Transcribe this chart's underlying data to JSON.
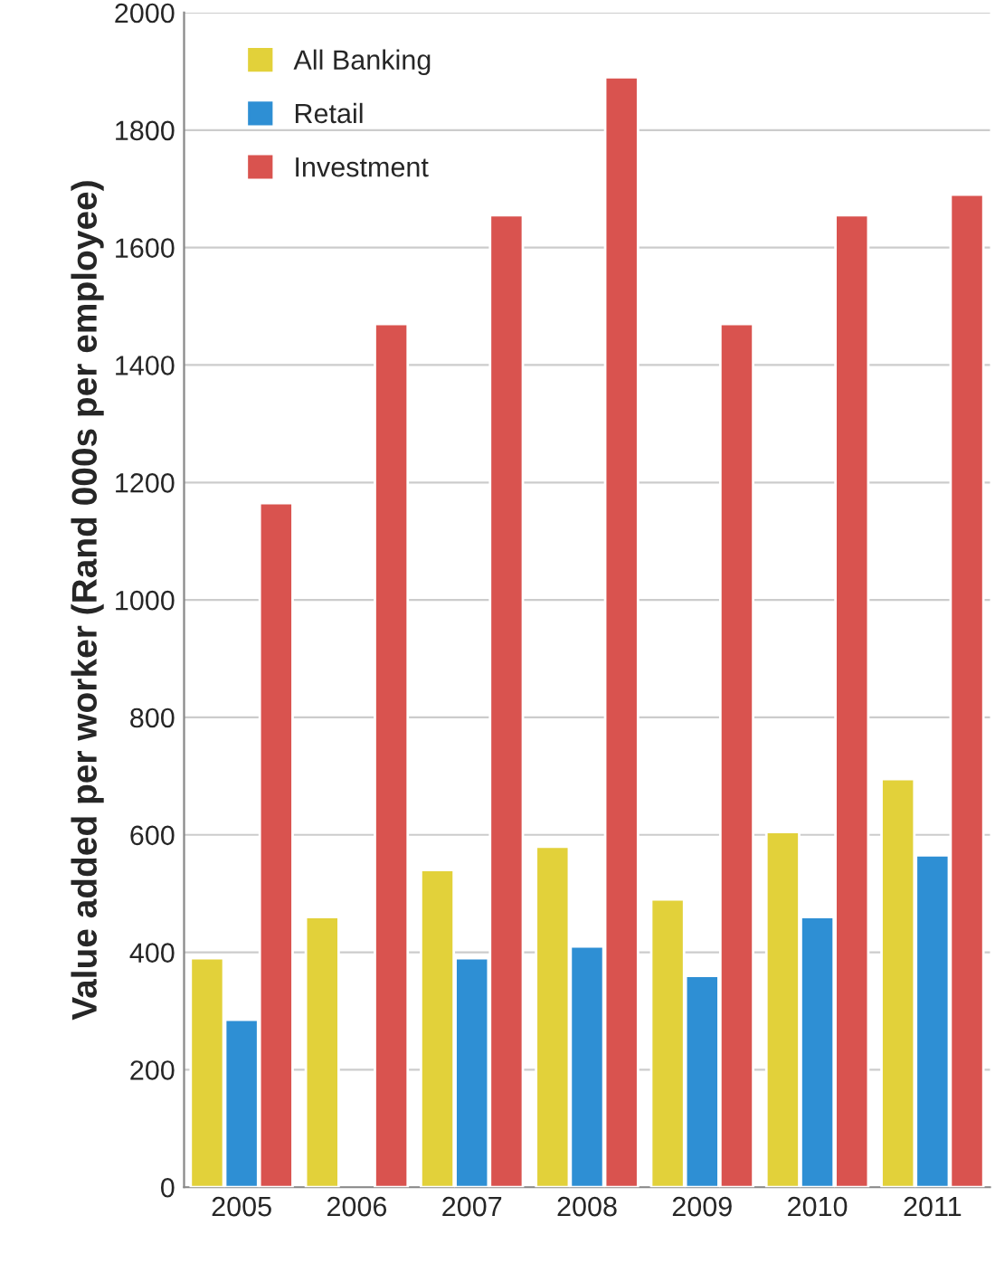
{
  "chart_data": {
    "type": "bar",
    "ylabel": "Value added per worker (Rand 000s per employee)",
    "categories": [
      "2005",
      "2006",
      "2007",
      "2008",
      "2009",
      "2010",
      "2011"
    ],
    "series": [
      {
        "name": "All Banking",
        "color": "#e2d13a",
        "values": [
          390,
          460,
          540,
          580,
          490,
          605,
          695
        ]
      },
      {
        "name": "Retail",
        "color": "#2e8fd4",
        "values": [
          285,
          null,
          390,
          410,
          360,
          460,
          565
        ]
      },
      {
        "name": "Investment",
        "color": "#d9534f",
        "values": [
          1165,
          1470,
          1655,
          1890,
          1470,
          1655,
          1690
        ]
      }
    ],
    "ylim": [
      0,
      2000
    ],
    "yticks": [
      0,
      200,
      400,
      600,
      800,
      1000,
      1200,
      1400,
      1600,
      1800,
      2000
    ],
    "grid": "y",
    "legend": "top left"
  }
}
